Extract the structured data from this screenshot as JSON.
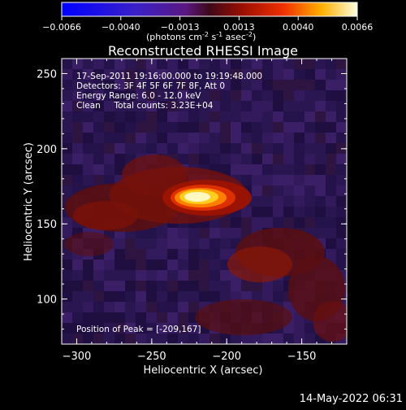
{
  "chart_data": {
    "type": "heatmap",
    "title": "Reconstructed RHESSI Image",
    "xlabel": "Heliocentric X (arcsec)",
    "ylabel": "Heliocentric Y (arcsec)",
    "xlim": [
      -310,
      -120
    ],
    "ylim": [
      70,
      260
    ],
    "xticks": [
      -300,
      -250,
      -200,
      -150
    ],
    "yticks": [
      100,
      150,
      200,
      250
    ],
    "colorbar": {
      "ticks": [
        "-0.0066",
        "-0.0040",
        "-0.0013",
        "0.0013",
        "0.0040",
        "0.0066"
      ],
      "range": [
        -0.0066,
        0.0066
      ],
      "units_prefix": "(photons cm",
      "units_exp1": "-2",
      "units_mid": " s",
      "units_exp2": "-1",
      "units_mid2": " asec",
      "units_exp3": "-2",
      "units_suffix": ")"
    },
    "peak": {
      "x": -209,
      "y": 167,
      "value": 0.0066
    },
    "annotations": {
      "time": "17-Sep-2011 19:16:00.000 to 19:19:48.000",
      "detectors": "Detectors: 3F 4F 5F 6F 7F 8F, Att 0",
      "energy": "Energy Range: 6.0 - 12.0 keV",
      "clean": "Clean     Total counts: 3.23E+04",
      "peak_text": "Position of Peak = [-209,167]"
    }
  },
  "footer": {
    "timestamp": "14-May-2022 06:31"
  },
  "colors": {
    "background": "#000000",
    "foreground": "#ffffff"
  }
}
